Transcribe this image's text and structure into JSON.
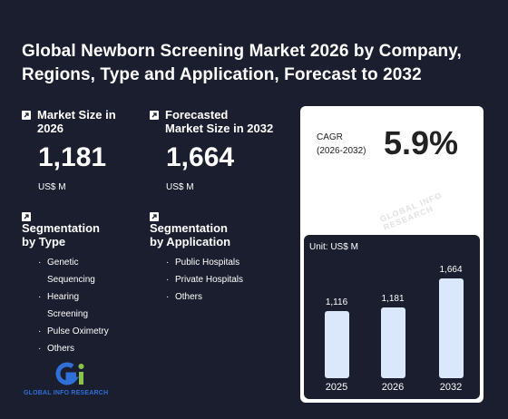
{
  "title": {
    "line1": "Global Newborn Screening Market 2026 by Company,",
    "line2": "Regions, Type and Application, Forecast to 2032"
  },
  "market_size": {
    "label_line1": "Market Size in",
    "label_line2": "2026",
    "value": "1,181",
    "unit": "US$ M"
  },
  "forecast": {
    "label_line1": "Forecasted",
    "label_line2": "Market Size in 2032",
    "value": "1,664",
    "unit": "US$ M"
  },
  "seg_type": {
    "label_line1": "Segmentation",
    "label_line2": "by Type",
    "items": [
      {
        "line1": "Genetic",
        "line2": "Sequencing"
      },
      {
        "line1": "Hearing",
        "line2": "Screening"
      },
      {
        "line1": "Pulse Oximetry",
        "line2": ""
      },
      {
        "line1": "Others",
        "line2": ""
      }
    ]
  },
  "seg_app": {
    "label_line1": "Segmentation",
    "label_line2": "by Application",
    "items": [
      "Public Hospitals",
      "Private Hospitals",
      "Others"
    ]
  },
  "cagr": {
    "label_line1": "CAGR",
    "label_line2": "(2026-2032)",
    "value": "5.9%"
  },
  "watermark": "GLOBAL INFO RESEARCH",
  "logo": {
    "text": "GLOBAL INFO RESEARCH"
  },
  "colors": {
    "background": "#1b1e2e",
    "bar": "#dbe8fb",
    "logo_blue": "#2f6fd8",
    "logo_green": "#8bc34a"
  },
  "chart_data": {
    "type": "bar",
    "unit_label": "Unit: US$ M",
    "categories": [
      "2025",
      "2026",
      "2032"
    ],
    "values": [
      1116,
      1181,
      1664
    ],
    "value_labels": [
      "1,116",
      "1,181",
      "1,664"
    ]
  }
}
